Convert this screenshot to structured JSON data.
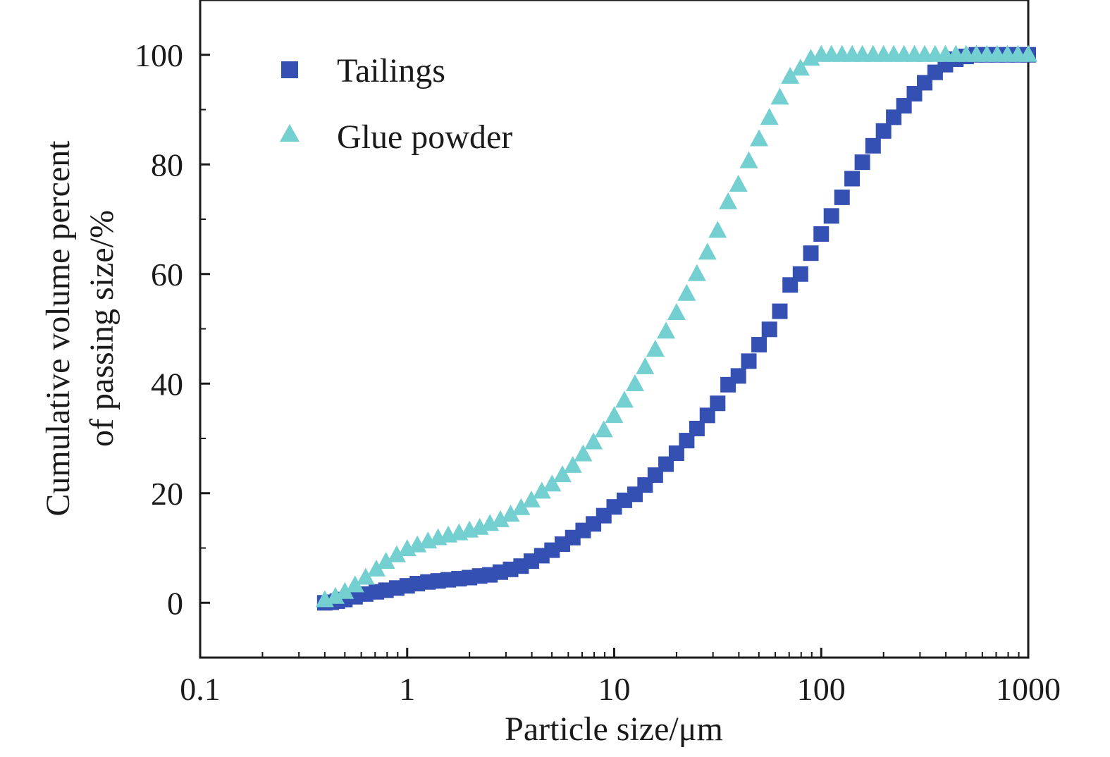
{
  "chart_data": {
    "type": "scatter",
    "x_scale": "log",
    "xlim": [
      0.1,
      1000
    ],
    "ylim": [
      -10,
      110
    ],
    "xlabel": "Particle size/μm",
    "ylabel_lines": [
      "Cumulative volume percent",
      "of passing size/%"
    ],
    "x_ticks": [
      0.1,
      1,
      10,
      100,
      1000
    ],
    "x_tick_labels": [
      "0.1",
      "1",
      "10",
      "100",
      "1000"
    ],
    "y_ticks": [
      0,
      20,
      40,
      60,
      80,
      100
    ],
    "y_tick_labels": [
      "0",
      "20",
      "40",
      "60",
      "80",
      "100"
    ],
    "grid": false,
    "legend_position": "top-left",
    "series": [
      {
        "name": "Tailings",
        "marker": "square",
        "color": "#3450b3",
        "points": [
          [
            0.4,
            0.0
          ],
          [
            0.43,
            0.1
          ],
          [
            0.46,
            0.3
          ],
          [
            0.5,
            0.6
          ],
          [
            0.56,
            1.1
          ],
          [
            0.63,
            1.6
          ],
          [
            0.71,
            2.0
          ],
          [
            0.79,
            2.3
          ],
          [
            0.89,
            2.7
          ],
          [
            1.0,
            3.1
          ],
          [
            1.12,
            3.5
          ],
          [
            1.26,
            3.8
          ],
          [
            1.41,
            4.0
          ],
          [
            1.58,
            4.2
          ],
          [
            1.78,
            4.4
          ],
          [
            2.0,
            4.6
          ],
          [
            2.24,
            4.9
          ],
          [
            2.51,
            5.1
          ],
          [
            2.82,
            5.6
          ],
          [
            3.16,
            6.1
          ],
          [
            3.55,
            6.7
          ],
          [
            3.98,
            7.6
          ],
          [
            4.47,
            8.6
          ],
          [
            5.01,
            9.6
          ],
          [
            5.62,
            10.7
          ],
          [
            6.31,
            11.9
          ],
          [
            7.08,
            13.2
          ],
          [
            7.94,
            14.4
          ],
          [
            8.91,
            15.9
          ],
          [
            10.0,
            17.5
          ],
          [
            11.2,
            18.7
          ],
          [
            12.6,
            19.8
          ],
          [
            14.1,
            21.5
          ],
          [
            15.8,
            23.3
          ],
          [
            17.8,
            25.3
          ],
          [
            20.0,
            27.3
          ],
          [
            22.4,
            29.6
          ],
          [
            25.1,
            31.8
          ],
          [
            28.2,
            34.2
          ],
          [
            31.6,
            36.4
          ],
          [
            35.5,
            39.8
          ],
          [
            39.8,
            41.4
          ],
          [
            44.7,
            44.1
          ],
          [
            50.1,
            47.1
          ],
          [
            56.2,
            49.9
          ],
          [
            63.1,
            53.2
          ],
          [
            70.8,
            58.0
          ],
          [
            79.4,
            60.0
          ],
          [
            89.1,
            63.8
          ],
          [
            100,
            67.3
          ],
          [
            112,
            70.6
          ],
          [
            126,
            74.0
          ],
          [
            141,
            77.4
          ],
          [
            158,
            80.4
          ],
          [
            178,
            83.4
          ],
          [
            200,
            86.1
          ],
          [
            224,
            88.6
          ],
          [
            251,
            90.7
          ],
          [
            282,
            92.9
          ],
          [
            316,
            94.9
          ],
          [
            355,
            96.8
          ],
          [
            398,
            98.2
          ],
          [
            447,
            99.2
          ],
          [
            501,
            99.7
          ],
          [
            562,
            100.0
          ],
          [
            631,
            100.0
          ],
          [
            708,
            100.0
          ],
          [
            794,
            100.0
          ],
          [
            891,
            100.0
          ],
          [
            1000,
            100.0
          ]
        ]
      },
      {
        "name": "Glue powder",
        "marker": "triangle",
        "color": "#74cfd0",
        "points": [
          [
            0.4,
            0.5
          ],
          [
            0.45,
            1.1
          ],
          [
            0.5,
            2.0
          ],
          [
            0.56,
            3.2
          ],
          [
            0.63,
            4.6
          ],
          [
            0.71,
            6.1
          ],
          [
            0.79,
            7.5
          ],
          [
            0.89,
            8.7
          ],
          [
            1.0,
            9.8
          ],
          [
            1.12,
            10.5
          ],
          [
            1.26,
            11.2
          ],
          [
            1.41,
            11.8
          ],
          [
            1.58,
            12.3
          ],
          [
            1.78,
            12.7
          ],
          [
            2.0,
            13.2
          ],
          [
            2.24,
            13.7
          ],
          [
            2.51,
            14.4
          ],
          [
            2.82,
            15.1
          ],
          [
            3.16,
            16.1
          ],
          [
            3.55,
            17.3
          ],
          [
            3.98,
            18.7
          ],
          [
            4.47,
            20.3
          ],
          [
            5.01,
            21.6
          ],
          [
            5.62,
            23.3
          ],
          [
            6.31,
            25.0
          ],
          [
            7.08,
            27.1
          ],
          [
            7.94,
            29.3
          ],
          [
            8.91,
            31.5
          ],
          [
            10.0,
            34.1
          ],
          [
            11.2,
            36.9
          ],
          [
            12.6,
            39.9
          ],
          [
            14.1,
            43.0
          ],
          [
            15.8,
            46.2
          ],
          [
            17.8,
            49.5
          ],
          [
            20.0,
            52.9
          ],
          [
            22.4,
            56.4
          ],
          [
            25.1,
            60.0
          ],
          [
            28.2,
            63.9
          ],
          [
            31.6,
            67.9
          ],
          [
            35.5,
            73.1
          ],
          [
            39.8,
            76.3
          ],
          [
            44.7,
            80.6
          ],
          [
            50.1,
            84.6
          ],
          [
            56.2,
            88.5
          ],
          [
            63.1,
            92.2
          ],
          [
            70.8,
            96.0
          ],
          [
            79.4,
            97.5
          ],
          [
            89.1,
            99.3
          ],
          [
            100,
            100.0
          ],
          [
            112,
            100.0
          ],
          [
            126,
            100.0
          ],
          [
            141,
            100.0
          ],
          [
            158,
            100.0
          ],
          [
            178,
            100.0
          ],
          [
            200,
            100.0
          ],
          [
            224,
            100.0
          ],
          [
            251,
            100.0
          ],
          [
            282,
            100.0
          ],
          [
            316,
            100.0
          ],
          [
            355,
            100.0
          ],
          [
            398,
            100.0
          ],
          [
            447,
            100.0
          ],
          [
            501,
            100.0
          ],
          [
            562,
            100.0
          ],
          [
            631,
            100.0
          ],
          [
            708,
            100.0
          ],
          [
            794,
            100.0
          ],
          [
            891,
            100.0
          ],
          [
            1000,
            100.0
          ]
        ]
      }
    ]
  }
}
